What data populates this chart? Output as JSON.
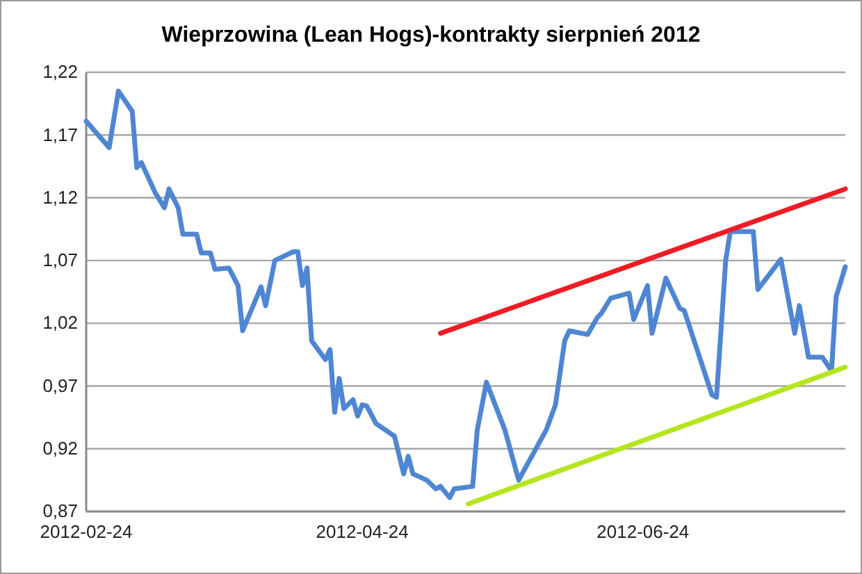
{
  "chart_data": {
    "type": "line",
    "title": "Wieprzowina (Lean Hogs)-kontrakty sierpnień 2012",
    "xlim": [
      "2012-02-24",
      "2012-08-07"
    ],
    "xticks": [
      "2012-02-24",
      "2012-04-24",
      "2012-06-24"
    ],
    "ylim": [
      0.87,
      1.22
    ],
    "yticks": [
      {
        "value": 0.87,
        "label": "0,87"
      },
      {
        "value": 0.92,
        "label": "0,92"
      },
      {
        "value": 0.97,
        "label": "0,97"
      },
      {
        "value": 1.02,
        "label": "1,02"
      },
      {
        "value": 1.07,
        "label": "1,07"
      },
      {
        "value": 1.12,
        "label": "1,12"
      },
      {
        "value": 1.17,
        "label": "1,17"
      },
      {
        "value": 1.22,
        "label": "1,22"
      }
    ],
    "grid": "y",
    "line_style": "solid",
    "marker": "none",
    "series": [
      {
        "color": "#4f86d2",
        "x": [
          "2012-02-24",
          "2012-02-29",
          "2012-03-02",
          "2012-03-05",
          "2012-03-06",
          "2012-03-07",
          "2012-03-10",
          "2012-03-12",
          "2012-03-13",
          "2012-03-15",
          "2012-03-16",
          "2012-03-19",
          "2012-03-20",
          "2012-03-22",
          "2012-03-23",
          "2012-03-26",
          "2012-03-28",
          "2012-03-29",
          "2012-04-02",
          "2012-04-03",
          "2012-04-05",
          "2012-04-09",
          "2012-04-10",
          "2012-04-11",
          "2012-04-12",
          "2012-04-13",
          "2012-04-16",
          "2012-04-17",
          "2012-04-18",
          "2012-04-19",
          "2012-04-20",
          "2012-04-22",
          "2012-04-23",
          "2012-04-24",
          "2012-04-25",
          "2012-04-27",
          "2012-05-01",
          "2012-05-03",
          "2012-05-04",
          "2012-05-05",
          "2012-05-08",
          "2012-05-10",
          "2012-05-11",
          "2012-05-13",
          "2012-05-14",
          "2012-05-18",
          "2012-05-19",
          "2012-05-21",
          "2012-05-25",
          "2012-05-28",
          "2012-06-03",
          "2012-06-05",
          "2012-06-07",
          "2012-06-08",
          "2012-06-12",
          "2012-06-14",
          "2012-06-15",
          "2012-06-17",
          "2012-06-21",
          "2012-06-22",
          "2012-06-25",
          "2012-06-26",
          "2012-06-29",
          "2012-07-02",
          "2012-07-03",
          "2012-07-09",
          "2012-07-10",
          "2012-07-12",
          "2012-07-13",
          "2012-07-18",
          "2012-07-19",
          "2012-07-24",
          "2012-07-27",
          "2012-07-28",
          "2012-07-30",
          "2012-08-02",
          "2012-08-04",
          "2012-08-05",
          "2012-08-07"
        ],
        "values": [
          1.181,
          1.16,
          1.205,
          1.189,
          1.144,
          1.148,
          1.124,
          1.112,
          1.127,
          1.112,
          1.091,
          1.091,
          1.076,
          1.076,
          1.063,
          1.064,
          1.05,
          1.014,
          1.049,
          1.034,
          1.07,
          1.077,
          1.077,
          1.05,
          1.064,
          1.006,
          0.991,
          0.999,
          0.949,
          0.976,
          0.952,
          0.959,
          0.946,
          0.955,
          0.954,
          0.94,
          0.93,
          0.9,
          0.914,
          0.9,
          0.895,
          0.888,
          0.89,
          0.881,
          0.888,
          0.89,
          0.935,
          0.973,
          0.935,
          0.895,
          0.935,
          0.955,
          1.006,
          1.014,
          1.011,
          1.024,
          1.028,
          1.04,
          1.044,
          1.023,
          1.05,
          1.012,
          1.056,
          1.032,
          1.03,
          0.963,
          0.961,
          1.07,
          1.093,
          1.093,
          1.047,
          1.071,
          1.012,
          1.034,
          0.993,
          0.993,
          0.982,
          1.041,
          1.065
        ]
      },
      {
        "color": "#ee1c25",
        "x": [
          "2012-05-11",
          "2012-08-07"
        ],
        "values": [
          1.012,
          1.127
        ]
      },
      {
        "color": "#b5e61d",
        "x": [
          "2012-05-17",
          "2012-08-07"
        ],
        "values": [
          0.876,
          0.985
        ]
      }
    ]
  }
}
